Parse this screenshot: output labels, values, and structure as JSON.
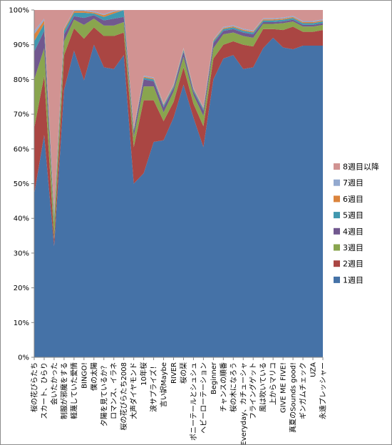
{
  "chart_data": {
    "type": "area",
    "stacked": "percent",
    "title": "",
    "xlabel": "",
    "ylabel": "",
    "ylim": [
      0,
      100
    ],
    "y_ticks": [
      "0%",
      "10%",
      "20%",
      "30%",
      "40%",
      "50%",
      "60%",
      "70%",
      "80%",
      "90%",
      "100%"
    ],
    "grid": false,
    "legend_position": "right",
    "categories": [
      "桜の花びらたち",
      "スカート、ひらり",
      "会いたかった",
      "制服が邪魔をする",
      "軽蔑していた愛情",
      "BINGO!",
      "僕の太陽",
      "夕陽を見ているか？",
      "ロマンス、イラネ",
      "桜の花びらたち2008",
      "大声ダイヤモンド",
      "10年桜",
      "涙サプライズ！",
      "言い訳Maybe",
      "RIVER",
      "桜の栞",
      "ポニーテールとシュシュ",
      "ヘビーローテーション",
      "Beginner",
      "チャンスの順番",
      "桜の木になろう",
      "Everyday、カチューシャ",
      "フライングゲット",
      "風は吹いている",
      "上からマリコ",
      "GIVE ME FIVE!",
      "真夏のSounds good!",
      "ギンガムチェック",
      "UZA",
      "永遠プレッシャー"
    ],
    "series": [
      {
        "name": "1週目",
        "color": "#4572A7",
        "values": [
          47,
          64,
          32,
          77,
          89,
          80,
          90,
          83.5,
          83,
          87,
          50,
          53,
          62,
          62.5,
          69,
          78.5,
          69,
          60.5,
          80,
          86,
          87,
          83,
          83.5,
          89,
          92,
          89.5,
          88.5,
          90,
          90,
          90
        ]
      },
      {
        "name": "2週目",
        "color": "#AA4643",
        "values": [
          19,
          17,
          2,
          10,
          6.5,
          12,
          5,
          9,
          9.5,
          6.5,
          10.5,
          21,
          12,
          5.5,
          4.5,
          5,
          4,
          6,
          6,
          4,
          4,
          7,
          6,
          5.5,
          2.5,
          5,
          6.5,
          4,
          4,
          4.5
        ]
      },
      {
        "name": "3週目",
        "color": "#89A54E",
        "values": [
          14,
          8,
          5,
          4,
          2.5,
          4,
          2.5,
          3,
          3,
          3,
          3,
          4,
          4,
          2.5,
          3,
          3,
          2.5,
          3,
          3,
          3,
          2.5,
          2.5,
          2.5,
          1.5,
          1.5,
          2,
          1.5,
          1.5,
          1.5,
          1.5
        ]
      },
      {
        "name": "4週目",
        "color": "#71588F",
        "values": [
          8,
          5,
          1,
          2,
          1,
          2,
          1,
          1.5,
          2,
          1.5,
          1.5,
          2,
          1.5,
          1.5,
          1,
          1.5,
          1,
          1.5,
          1.5,
          1,
          1,
          1,
          1,
          0.5,
          0.5,
          0.5,
          0.5,
          0.5,
          0.5,
          0.5
        ]
      },
      {
        "name": "5週目",
        "color": "#4198AF",
        "values": [
          3,
          2,
          1,
          1,
          1,
          1.5,
          0.5,
          1,
          1.5,
          2,
          0.5,
          0.5,
          0.5,
          0.5,
          0.5,
          0.5,
          0.5,
          0.5,
          0.5,
          0.5,
          0.5,
          0.5,
          0.5,
          0.5,
          0.5,
          0.5,
          0.5,
          0.5,
          0.5,
          0.5
        ]
      },
      {
        "name": "6週目",
        "color": "#DB843D",
        "values": [
          2,
          1,
          0.5,
          0.5,
          0.5,
          0.5,
          0.3,
          0.5,
          0.5,
          0,
          0.3,
          0.3,
          0.3,
          0.3,
          0.3,
          0.3,
          0.3,
          0.3,
          0.3,
          0.3,
          0.3,
          0.3,
          0.3,
          0.3,
          0.3,
          0.3,
          0.3,
          0.3,
          0.3,
          0.3
        ]
      },
      {
        "name": "7週目",
        "color": "#93A9CF",
        "values": [
          1,
          0.5,
          0.5,
          0.3,
          0.3,
          0.3,
          0.3,
          0.3,
          0.3,
          0,
          0.3,
          0.3,
          0.3,
          0.3,
          0.3,
          0.3,
          0.3,
          0.3,
          0.3,
          0.3,
          0.3,
          0.3,
          0.3,
          0.3,
          0.3,
          0.3,
          0.3,
          0.3,
          0.3,
          0.3
        ]
      },
      {
        "name": "8週目以降",
        "color": "#D19392",
        "values": [
          6,
          2.5,
          58,
          5.2,
          0,
          0,
          0.4,
          1.2,
          0.2,
          0,
          33.9,
          18.9,
          19.4,
          26.9,
          21.4,
          10.9,
          22.4,
          27.9,
          8.4,
          4.9,
          4.4,
          5.4,
          5.9,
          2.4,
          2.4,
          2.2,
          1.7,
          3.2,
          3.2,
          2.7
        ]
      }
    ]
  }
}
